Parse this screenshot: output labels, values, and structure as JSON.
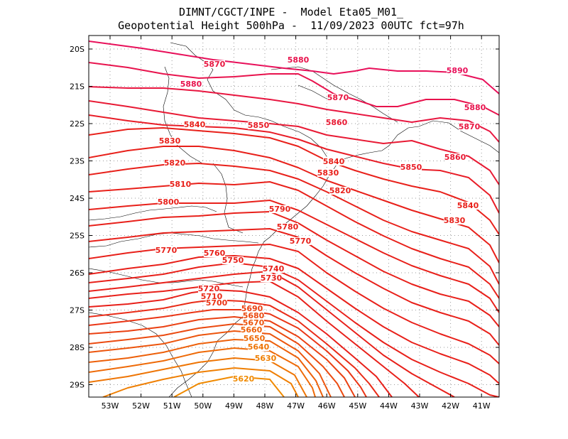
{
  "header": {
    "line1": "DIMNT/CGCT/INPE -  Model Eta05_M01_",
    "line2": "Geopotential Height 500hPa -  11/09/2023 00UTC fct=97h"
  },
  "axes": {
    "lat_ticks": [
      "20S",
      "21S",
      "22S",
      "23S",
      "24S",
      "25S",
      "26S",
      "27S",
      "28S",
      "29S"
    ],
    "lon_ticks": [
      "53W",
      "52W",
      "51W",
      "50W",
      "49W",
      "48W",
      "47W",
      "46W",
      "45W",
      "44W",
      "43W",
      "42W",
      "41W"
    ]
  },
  "colors": {
    "high": "#e8105a",
    "mid": "#e8201a",
    "low": "#f08a00",
    "coast": "#000000",
    "grid": "#9a9a9a",
    "frame": "#000000"
  },
  "contour_labels": [
    {
      "text": "5890",
      "level": 5890
    },
    {
      "text": "5880",
      "level": 5880
    },
    {
      "text": "5880",
      "level": 5880
    },
    {
      "text": "5880",
      "level": 5880
    },
    {
      "text": "5870",
      "level": 5870
    },
    {
      "text": "5870",
      "level": 5870
    },
    {
      "text": "5870",
      "level": 5870
    },
    {
      "text": "5860",
      "level": 5860
    },
    {
      "text": "5860",
      "level": 5860
    },
    {
      "text": "5850",
      "level": 5850
    },
    {
      "text": "5850",
      "level": 5850
    },
    {
      "text": "5840",
      "level": 5840
    },
    {
      "text": "5840",
      "level": 5840
    },
    {
      "text": "5840",
      "level": 5840
    },
    {
      "text": "5830",
      "level": 5830
    },
    {
      "text": "5830",
      "level": 5830
    },
    {
      "text": "5830",
      "level": 5830
    },
    {
      "text": "5820",
      "level": 5820
    },
    {
      "text": "5820",
      "level": 5820
    },
    {
      "text": "5810",
      "level": 5810
    },
    {
      "text": "5800",
      "level": 5800
    },
    {
      "text": "5790",
      "level": 5790
    },
    {
      "text": "5780",
      "level": 5780
    },
    {
      "text": "5770",
      "level": 5770
    },
    {
      "text": "5770",
      "level": 5770
    },
    {
      "text": "5760",
      "level": 5760
    },
    {
      "text": "5750",
      "level": 5750
    },
    {
      "text": "5740",
      "level": 5740
    },
    {
      "text": "5730",
      "level": 5730
    },
    {
      "text": "5720",
      "level": 5720
    },
    {
      "text": "5710",
      "level": 5710
    },
    {
      "text": "5700",
      "level": 5700
    },
    {
      "text": "5690",
      "level": 5690
    },
    {
      "text": "5680",
      "level": 5680
    },
    {
      "text": "5670",
      "level": 5670
    },
    {
      "text": "5660",
      "level": 5660
    },
    {
      "text": "5650",
      "level": 5650
    },
    {
      "text": "5640",
      "level": 5640
    },
    {
      "text": "5630",
      "level": 5630
    },
    {
      "text": "5620",
      "level": 5620
    }
  ]
}
